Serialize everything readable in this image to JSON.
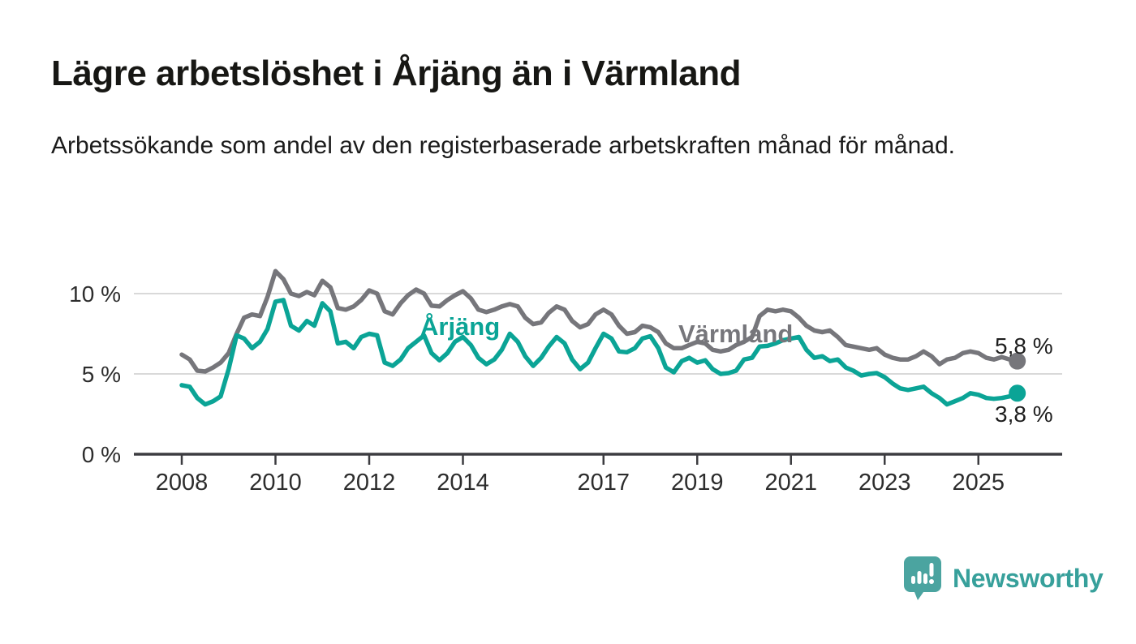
{
  "page": {
    "title": "Lägre arbetslöshet i Årjäng än i Värmland",
    "subtitle": "Arbetssökande som andel av den registerbaserade arbetskraften månad för månad.",
    "background": "#ffffff"
  },
  "branding": {
    "wordmark": "Newsworthy",
    "logo_icon": "speech-bubble-bar-chart-icon",
    "wordmark_color": "#37a09b",
    "bubble_color": "#4ba4a0"
  },
  "chart_data": {
    "type": "line",
    "title": "Lägre arbetslöshet i Årjäng än i Värmland",
    "subtitle": "Arbetssökande som andel av den registerbaserade arbetskraften månad för månad.",
    "xlabel": "",
    "ylabel": "",
    "grid": "horizontal",
    "legend": "inline-labels",
    "xlim": [
      2007.0,
      2026.8
    ],
    "ylim": [
      0,
      12
    ],
    "y_unit": "%",
    "x": [
      2008.0,
      2008.17,
      2008.33,
      2008.5,
      2008.67,
      2008.83,
      2009.0,
      2009.17,
      2009.33,
      2009.5,
      2009.67,
      2009.83,
      2010.0,
      2010.17,
      2010.33,
      2010.5,
      2010.67,
      2010.83,
      2011.0,
      2011.17,
      2011.33,
      2011.5,
      2011.67,
      2011.83,
      2012.0,
      2012.17,
      2012.33,
      2012.5,
      2012.67,
      2012.83,
      2013.0,
      2013.17,
      2013.33,
      2013.5,
      2013.67,
      2013.83,
      2014.0,
      2014.17,
      2014.33,
      2014.5,
      2014.67,
      2014.83,
      2015.0,
      2015.17,
      2015.33,
      2015.5,
      2015.67,
      2015.83,
      2016.0,
      2016.17,
      2016.33,
      2016.5,
      2016.67,
      2016.83,
      2017.0,
      2017.17,
      2017.33,
      2017.5,
      2017.67,
      2017.83,
      2018.0,
      2018.17,
      2018.33,
      2018.5,
      2018.67,
      2018.83,
      2019.0,
      2019.17,
      2019.33,
      2019.5,
      2019.67,
      2019.83,
      2020.0,
      2020.17,
      2020.33,
      2020.5,
      2020.67,
      2020.83,
      2021.0,
      2021.17,
      2021.33,
      2021.5,
      2021.67,
      2021.83,
      2022.0,
      2022.17,
      2022.33,
      2022.5,
      2022.67,
      2022.83,
      2023.0,
      2023.17,
      2023.33,
      2023.5,
      2023.67,
      2023.83,
      2024.0,
      2024.17,
      2024.33,
      2024.5,
      2024.67,
      2024.83,
      2025.0,
      2025.17,
      2025.33,
      2025.5,
      2025.67,
      2025.83
    ],
    "series": [
      {
        "name": "Värmland",
        "color": "#76767b",
        "end_label": "5,8 %",
        "values": [
          6.2,
          5.9,
          5.2,
          5.15,
          5.4,
          5.7,
          6.3,
          7.5,
          8.5,
          8.7,
          8.6,
          9.8,
          11.4,
          10.9,
          10.0,
          9.85,
          10.1,
          9.9,
          10.8,
          10.4,
          9.1,
          9.0,
          9.2,
          9.6,
          10.2,
          10.0,
          8.9,
          8.7,
          9.4,
          9.9,
          10.25,
          10.0,
          9.25,
          9.2,
          9.6,
          9.9,
          10.15,
          9.7,
          9.0,
          8.85,
          9.0,
          9.2,
          9.35,
          9.2,
          8.5,
          8.1,
          8.2,
          8.8,
          9.2,
          9.0,
          8.3,
          7.9,
          8.1,
          8.7,
          9.0,
          8.7,
          8.0,
          7.5,
          7.6,
          8.0,
          7.9,
          7.6,
          6.9,
          6.6,
          6.6,
          6.8,
          7.0,
          6.9,
          6.5,
          6.4,
          6.5,
          6.8,
          7.0,
          7.3,
          8.6,
          9.0,
          8.9,
          9.0,
          8.9,
          8.5,
          8.0,
          7.7,
          7.6,
          7.7,
          7.3,
          6.8,
          6.7,
          6.6,
          6.5,
          6.6,
          6.2,
          6.0,
          5.9,
          5.9,
          6.1,
          6.4,
          6.1,
          5.6,
          5.9,
          6.0,
          6.3,
          6.4,
          6.3,
          6.0,
          5.9,
          6.05,
          5.9,
          5.8
        ]
      },
      {
        "name": "Årjäng",
        "color": "#0ba496",
        "end_label": "3,8 %",
        "values": [
          4.3,
          4.2,
          3.5,
          3.1,
          3.3,
          3.6,
          5.3,
          7.4,
          7.2,
          6.6,
          7.0,
          7.8,
          9.5,
          9.6,
          8.0,
          7.7,
          8.3,
          8.0,
          9.4,
          8.9,
          6.9,
          7.0,
          6.6,
          7.3,
          7.5,
          7.4,
          5.7,
          5.5,
          5.9,
          6.6,
          7.0,
          7.4,
          6.3,
          5.85,
          6.3,
          7.0,
          7.3,
          6.8,
          6.0,
          5.6,
          5.9,
          6.5,
          7.5,
          7.0,
          6.1,
          5.5,
          6.0,
          6.7,
          7.3,
          6.9,
          5.9,
          5.3,
          5.7,
          6.6,
          7.5,
          7.2,
          6.4,
          6.35,
          6.6,
          7.2,
          7.35,
          6.6,
          5.4,
          5.1,
          5.8,
          6.0,
          5.7,
          5.85,
          5.3,
          5.0,
          5.05,
          5.2,
          5.9,
          6.0,
          6.7,
          6.75,
          6.9,
          7.1,
          7.2,
          7.3,
          6.5,
          6.0,
          6.1,
          5.8,
          5.9,
          5.4,
          5.2,
          4.9,
          5.0,
          5.05,
          4.8,
          4.4,
          4.1,
          4.0,
          4.1,
          4.2,
          3.8,
          3.5,
          3.1,
          3.3,
          3.5,
          3.8,
          3.7,
          3.5,
          3.45,
          3.5,
          3.6,
          3.8
        ]
      }
    ],
    "annotations": [
      {
        "text": "Årjäng",
        "series": "Årjäng",
        "color": "#0ba496"
      },
      {
        "text": "Värmland",
        "series": "Värmland",
        "color": "#76767b"
      }
    ],
    "x_ticks": [
      {
        "v": 2008,
        "label": "2008"
      },
      {
        "v": 2010,
        "label": "2010"
      },
      {
        "v": 2012,
        "label": "2012"
      },
      {
        "v": 2014,
        "label": "2014"
      },
      {
        "v": 2017,
        "label": "2017"
      },
      {
        "v": 2019,
        "label": "2019"
      },
      {
        "v": 2021,
        "label": "2021"
      },
      {
        "v": 2023,
        "label": "2023"
      },
      {
        "v": 2025,
        "label": "2025"
      }
    ],
    "y_ticks": [
      {
        "v": 0,
        "label": "0 %"
      },
      {
        "v": 5,
        "label": "5 %"
      },
      {
        "v": 10,
        "label": "10 %"
      }
    ]
  },
  "colors": {
    "axis": "#3c3c40",
    "grid": "#d9d9d9",
    "tick_text": "#2d2d2d",
    "value_label_text": "#1d1d1d"
  }
}
